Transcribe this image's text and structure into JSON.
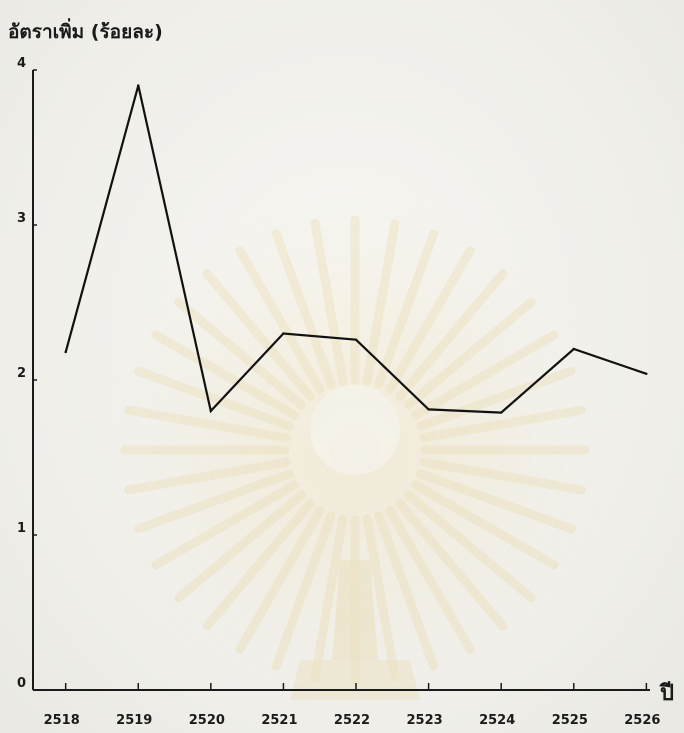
{
  "chart_data": {
    "type": "line",
    "ylabel": "อัตราเพิ่ม (ร้อยละ)",
    "xlabel": "ปี",
    "x": [
      "2518",
      "2519",
      "2520",
      "2521",
      "2522",
      "2523",
      "2524",
      "2525",
      "2526"
    ],
    "x_ticks": [
      "2518",
      "2519",
      "2520",
      "2521",
      "2522",
      "2523",
      "2524",
      "2525",
      "2526"
    ],
    "series": [
      {
        "x": [
          2517.95,
          2518.95,
          2519.95,
          2520.95,
          2521.95,
          2522.95,
          2523.95,
          2524.95,
          2525.95
        ],
        "values": [
          2.18,
          3.9,
          1.8,
          2.3,
          2.26,
          1.81,
          1.79,
          2.2,
          2.04
        ]
      }
    ],
    "y_ticks": [
      "0",
      "1",
      "2",
      "3",
      "4"
    ],
    "ylim": [
      0,
      4
    ],
    "xlim": [
      2517.5,
      2526
    ],
    "grid": false,
    "line_color": "#111111"
  }
}
